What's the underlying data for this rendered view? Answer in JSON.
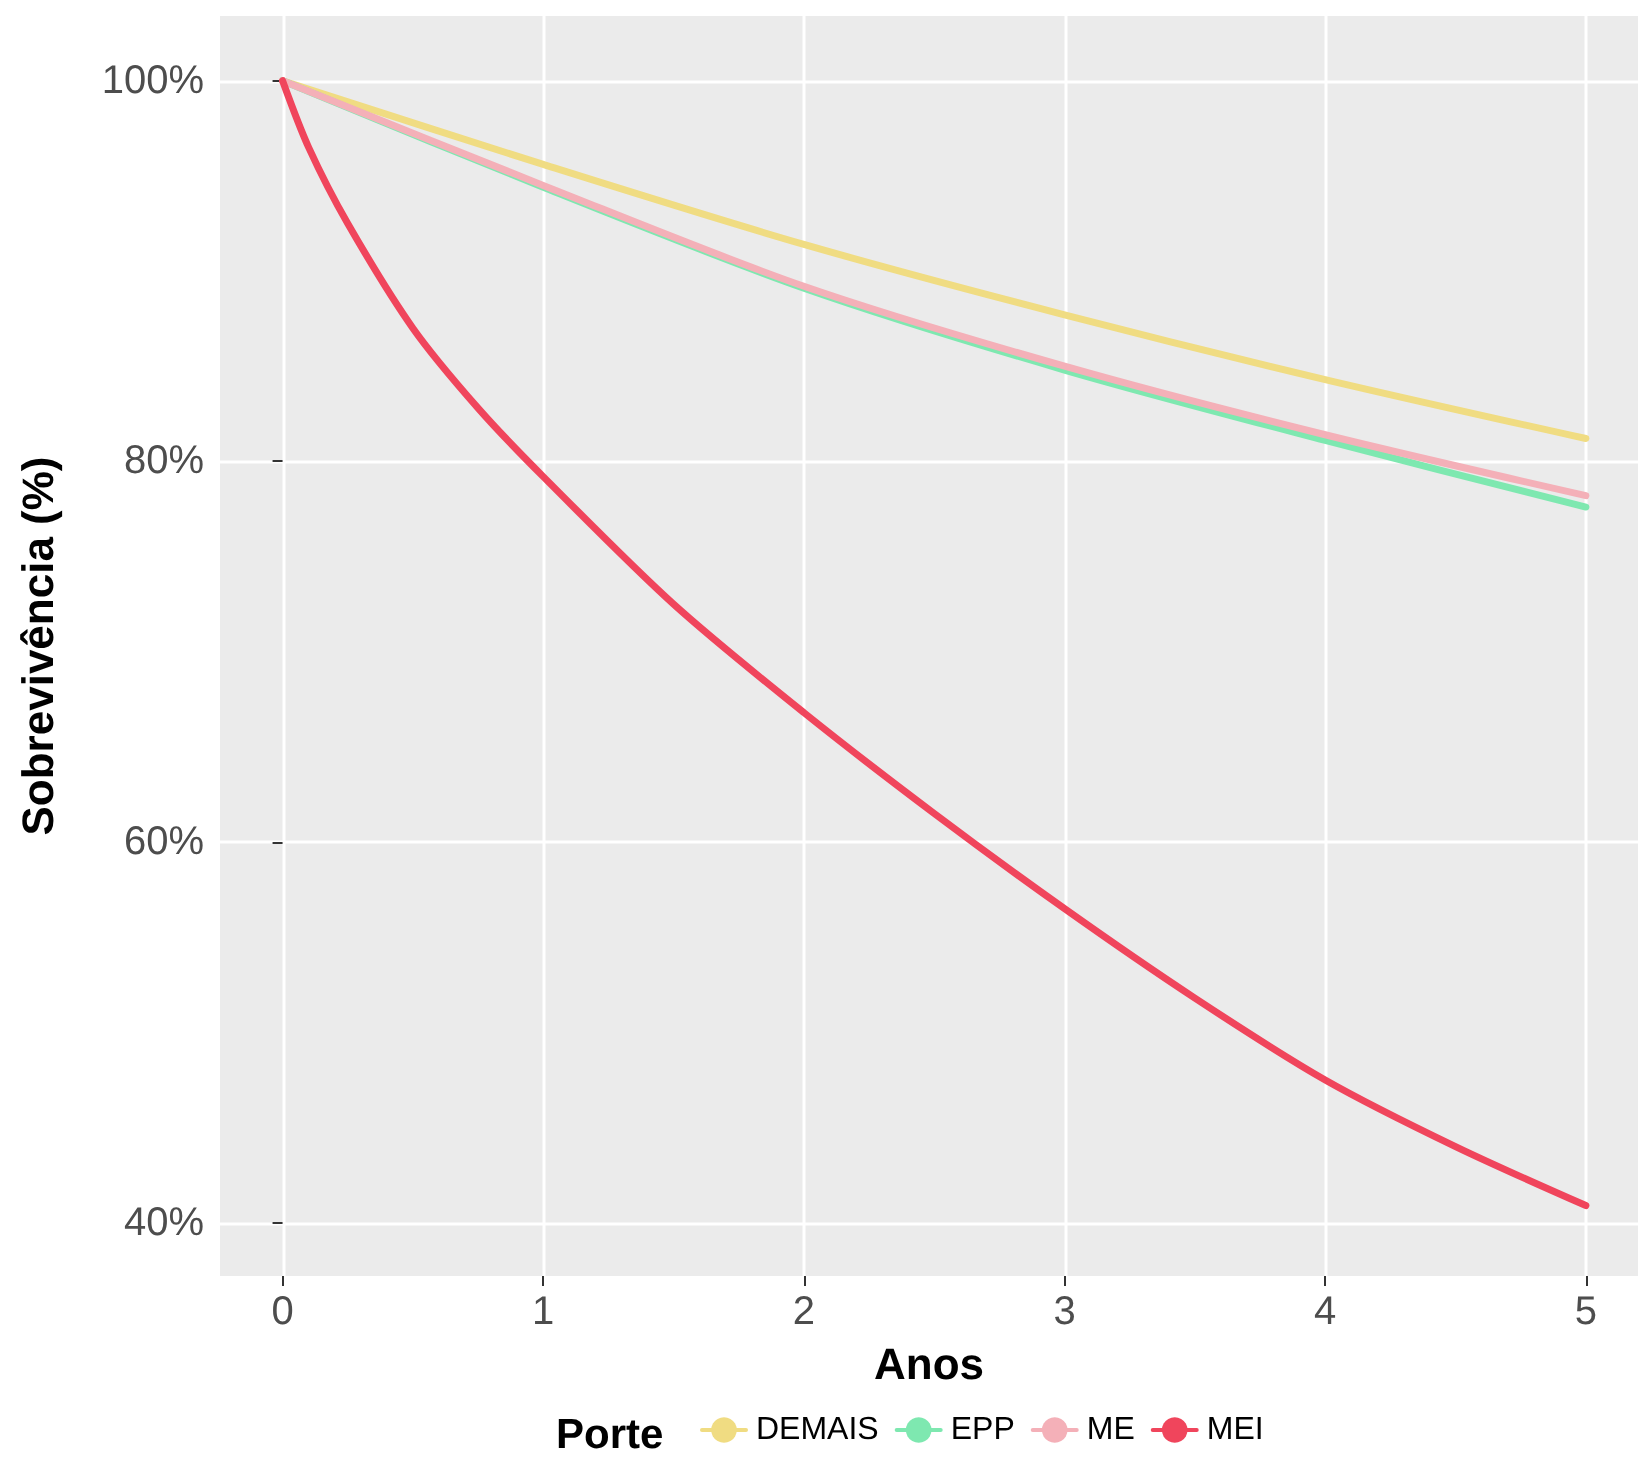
{
  "chart_data": {
    "type": "line",
    "xlabel": "Anos",
    "ylabel": "Sobrevivência (%)",
    "legend_title": "Porte",
    "legend": "bottom",
    "grid": true,
    "marker": "none",
    "line_style": "solid",
    "xlim": [
      -0.24,
      5.2
    ],
    "xticks": [
      0,
      1,
      2,
      3,
      4,
      5
    ],
    "ylim": [
      37.2,
      103.4
    ],
    "yticks": [
      {
        "value": 40,
        "label": "40%"
      },
      {
        "value": 60,
        "label": "60%"
      },
      {
        "value": 80,
        "label": "80%"
      },
      {
        "value": 100,
        "label": "100%"
      }
    ],
    "x": [
      0,
      1,
      2,
      3,
      4,
      5
    ],
    "series": [
      {
        "name": "DEMAIS",
        "color": "#f0dc82",
        "values": [
          100,
          95.6,
          91.4,
          87.7,
          84.3,
          81.2
        ]
      },
      {
        "name": "EPP",
        "color": "#7ee8b0",
        "values": [
          100,
          94.4,
          89.1,
          84.8,
          81.1,
          77.6
        ]
      },
      {
        "name": "ME",
        "color": "#f4b0b8",
        "values": [
          100,
          94.5,
          89.2,
          85.0,
          81.4,
          78.2
        ]
      },
      {
        "name": "MEI",
        "color": "#f0455c",
        "x": [
          0,
          0.1,
          0.25,
          0.5,
          0.75,
          1,
          1.5,
          2,
          2.5,
          3,
          3.5,
          4,
          4.5,
          5
        ],
        "values": [
          100,
          96.5,
          92.5,
          87,
          82.8,
          79.2,
          72.5,
          66.8,
          61.5,
          56.5,
          51.8,
          47.5,
          44,
          40.9
        ]
      }
    ]
  }
}
